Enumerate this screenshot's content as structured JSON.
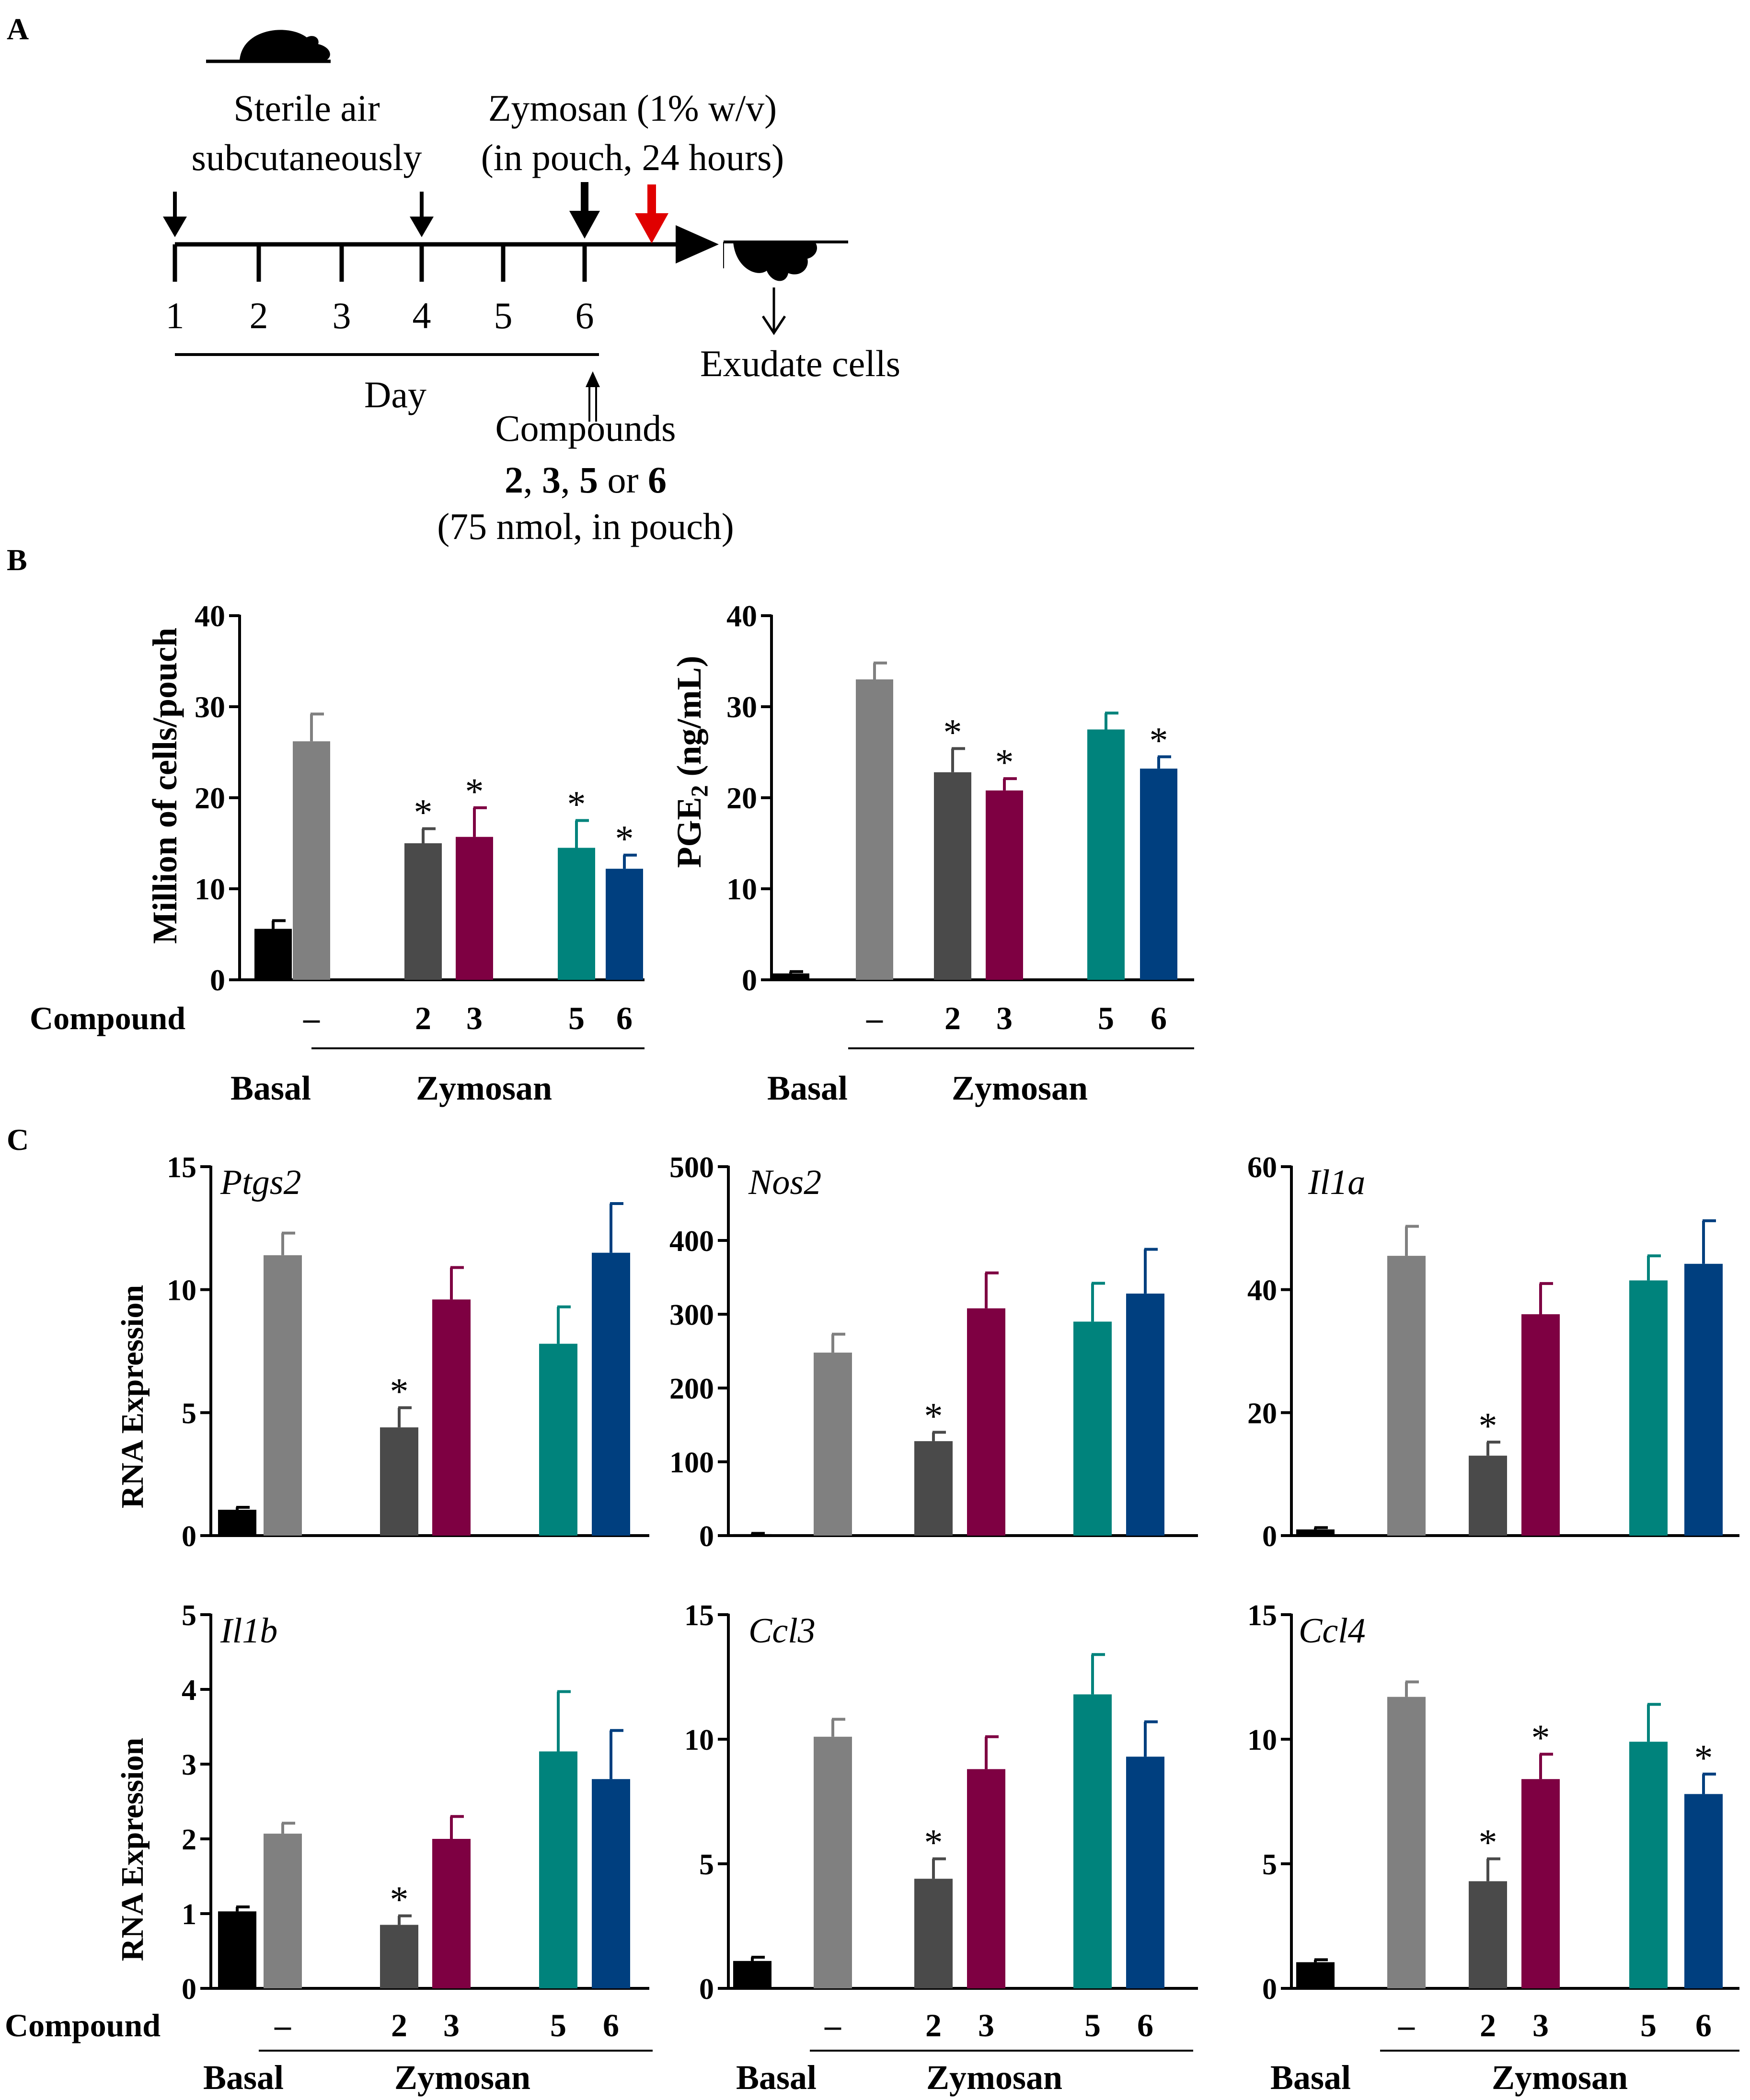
{
  "panels": {
    "a": "A",
    "b": "B",
    "c": "C"
  },
  "timeline": {
    "days": [
      "1",
      "2",
      "3",
      "4",
      "5",
      "6"
    ],
    "day_label": "Day",
    "air_line1": "Sterile air",
    "air_line2": "subcutaneously",
    "zym_line1": "Zymosan (1% w/v)",
    "zym_line2": "(in pouch, 24 hours)",
    "exudate": "Exudate cells",
    "comp_line1": "Compounds",
    "comp_n1": "2",
    "comp_n2": "3",
    "comp_n3": "5",
    "comp_or": "or",
    "comp_n4": "6",
    "comp_line3": "(75 nmol, in pouch)"
  },
  "axis_labels": {
    "compound": "Compound",
    "basal": "Basal",
    "zymosan": "Zymosan",
    "dash": "–",
    "c2": "2",
    "c3": "3",
    "c5": "5",
    "c6": "6"
  },
  "colors": {
    "basal": "#000000",
    "zymosan": "#808080",
    "c2": "#4a4a4a",
    "c3": "#7e0042",
    "c5": "#00837c",
    "c6": "#003f7f"
  },
  "chart_data": [
    {
      "type": "bar",
      "id": "cells",
      "categories": [
        "Basal",
        "–",
        "2",
        "3",
        "5",
        "6"
      ],
      "values": [
        5.6,
        26.2,
        15.0,
        15.7,
        14.5,
        12.2
      ],
      "errors": [
        0.9,
        3.0,
        1.6,
        3.2,
        3.0,
        1.5
      ],
      "significant": [
        false,
        false,
        true,
        true,
        true,
        true
      ],
      "ylabel": "Million of cells/pouch",
      "ylim": [
        0,
        40
      ],
      "yticks": [
        "0",
        "10",
        "20",
        "30",
        "40"
      ]
    },
    {
      "type": "bar",
      "id": "pge2",
      "categories": [
        "Basal",
        "–",
        "2",
        "3",
        "5",
        "6"
      ],
      "values": [
        0.7,
        33.0,
        22.8,
        20.8,
        27.5,
        23.2
      ],
      "errors": [
        0.2,
        1.8,
        2.6,
        1.3,
        1.8,
        1.3
      ],
      "significant": [
        false,
        false,
        true,
        true,
        false,
        true
      ],
      "ylabel_main": "PGE",
      "ylabel_sub": "2",
      "ylabel_unit": " (ng/mL)",
      "ylim": [
        0,
        40
      ],
      "yticks": [
        "0",
        "10",
        "20",
        "30",
        "40"
      ]
    },
    {
      "type": "bar",
      "id": "ptgs2",
      "title": "Ptgs2",
      "categories": [
        "Basal",
        "–",
        "2",
        "3",
        "5",
        "6"
      ],
      "values": [
        1.05,
        11.4,
        4.4,
        9.6,
        7.8,
        11.5
      ],
      "errors": [
        0.1,
        0.9,
        0.8,
        1.3,
        1.5,
        2.0
      ],
      "significant": [
        false,
        false,
        true,
        false,
        false,
        false
      ],
      "ylabel": "RNA Expression",
      "ylim": [
        0,
        15
      ],
      "yticks": [
        "0",
        "5",
        "10",
        "15"
      ]
    },
    {
      "type": "bar",
      "id": "nos2",
      "title": "Nos2",
      "categories": [
        "Basal",
        "–",
        "2",
        "3",
        "5",
        "6"
      ],
      "values": [
        2,
        248,
        128,
        308,
        290,
        328
      ],
      "errors": [
        1,
        25,
        12,
        48,
        52,
        60
      ],
      "significant": [
        false,
        false,
        true,
        false,
        false,
        false
      ],
      "ylim": [
        0,
        500
      ],
      "yticks": [
        "0",
        "100",
        "200",
        "300",
        "400",
        "500"
      ]
    },
    {
      "type": "bar",
      "id": "il1a",
      "title": "Il1a",
      "categories": [
        "Basal",
        "–",
        "2",
        "3",
        "5",
        "6"
      ],
      "values": [
        1.0,
        45.5,
        13.0,
        36.0,
        41.5,
        44.2
      ],
      "errors": [
        0.3,
        4.8,
        2.2,
        5.0,
        4.0,
        7.0
      ],
      "significant": [
        false,
        false,
        true,
        false,
        false,
        false
      ],
      "ylim": [
        0,
        60
      ],
      "yticks": [
        "0",
        "20",
        "40",
        "60"
      ]
    },
    {
      "type": "bar",
      "id": "il1b",
      "title": "Il1b",
      "categories": [
        "Basal",
        "–",
        "2",
        "3",
        "5",
        "6"
      ],
      "values": [
        1.03,
        2.07,
        0.85,
        2.0,
        3.17,
        2.8
      ],
      "errors": [
        0.06,
        0.14,
        0.12,
        0.3,
        0.8,
        0.65
      ],
      "significant": [
        false,
        false,
        true,
        false,
        false,
        false
      ],
      "ylabel": "RNA Expression",
      "ylim": [
        0,
        5
      ],
      "yticks": [
        "0",
        "1",
        "2",
        "3",
        "4",
        "5"
      ]
    },
    {
      "type": "bar",
      "id": "ccl3",
      "title": "Ccl3",
      "categories": [
        "Basal",
        "–",
        "2",
        "3",
        "5",
        "6"
      ],
      "values": [
        1.1,
        10.1,
        4.4,
        8.8,
        11.8,
        9.3
      ],
      "errors": [
        0.15,
        0.7,
        0.8,
        1.3,
        1.6,
        1.4
      ],
      "significant": [
        false,
        false,
        true,
        false,
        false,
        false
      ],
      "ylim": [
        0,
        15
      ],
      "yticks": [
        "0",
        "5",
        "10",
        "15"
      ]
    },
    {
      "type": "bar",
      "id": "ccl4",
      "title": "Ccl4",
      "categories": [
        "Basal",
        "–",
        "2",
        "3",
        "5",
        "6"
      ],
      "values": [
        1.05,
        11.7,
        4.3,
        8.4,
        9.9,
        7.8
      ],
      "errors": [
        0.1,
        0.6,
        0.9,
        1.0,
        1.5,
        0.8
      ],
      "significant": [
        false,
        false,
        true,
        true,
        false,
        true
      ],
      "ylim": [
        0,
        15
      ],
      "yticks": [
        "0",
        "5",
        "10",
        "15"
      ]
    }
  ]
}
